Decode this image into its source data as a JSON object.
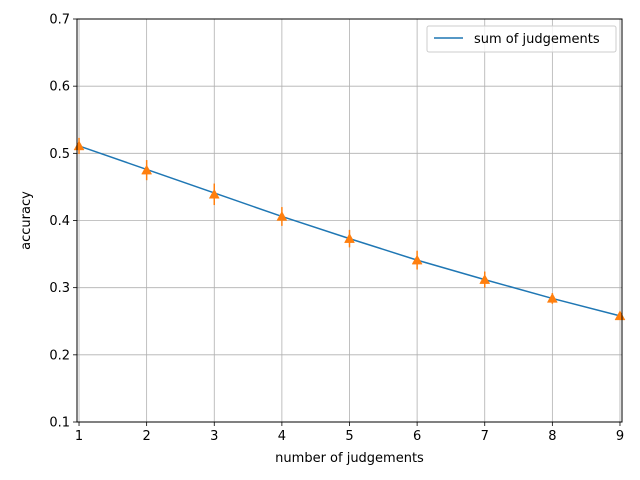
{
  "chart_data": {
    "type": "line",
    "title": "",
    "xlabel": "number of judgements",
    "ylabel": "accuracy",
    "xlim": [
      0.97,
      9.03
    ],
    "ylim": [
      0.1,
      0.7
    ],
    "xticks": [
      1,
      2,
      3,
      4,
      5,
      6,
      7,
      8,
      9
    ],
    "yticks": [
      0.1,
      0.2,
      0.3,
      0.4,
      0.5,
      0.6,
      0.7
    ],
    "xtick_labels": [
      "1",
      "2",
      "3",
      "4",
      "5",
      "6",
      "7",
      "8",
      "9"
    ],
    "ytick_labels": [
      "0.1",
      "0.2",
      "0.3",
      "0.4",
      "0.5",
      "0.6",
      "0.7"
    ],
    "grid": true,
    "legend_position": "top-right",
    "series": [
      {
        "name": "sum of judgements",
        "kind": "line",
        "color": "#1f77b4",
        "x": [
          1,
          2,
          3,
          4,
          5,
          6,
          7,
          8,
          9
        ],
        "y": [
          0.511,
          0.476,
          0.441,
          0.406,
          0.373,
          0.341,
          0.312,
          0.284,
          0.258
        ]
      },
      {
        "kind": "errorbar",
        "marker": "triangle-up",
        "color": "#ff7f0e",
        "x": [
          1,
          2,
          3,
          4,
          5,
          6,
          7,
          8,
          9
        ],
        "y": [
          0.511,
          0.475,
          0.439,
          0.406,
          0.373,
          0.341,
          0.312,
          0.284,
          0.258
        ],
        "yerr": [
          0.012,
          0.015,
          0.016,
          0.014,
          0.013,
          0.014,
          0.012,
          0.008,
          0.006
        ]
      }
    ]
  }
}
